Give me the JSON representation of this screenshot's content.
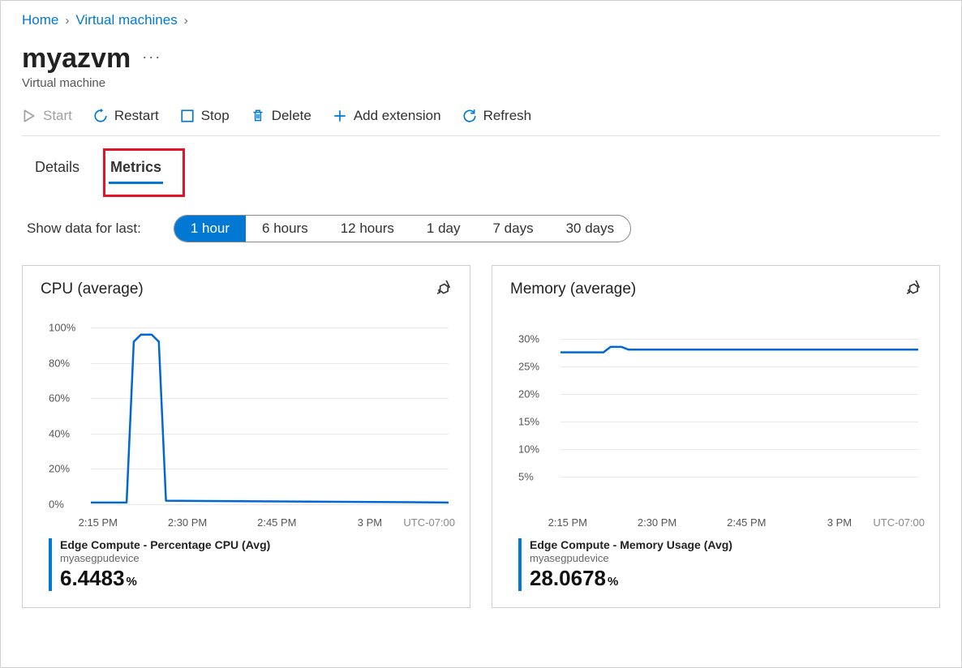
{
  "breadcrumb": {
    "home": "Home",
    "vms": "Virtual machines"
  },
  "title": "myazvm",
  "subtitle": "Virtual machine",
  "toolbar": {
    "start": "Start",
    "restart": "Restart",
    "stop": "Stop",
    "delete": "Delete",
    "add_extension": "Add extension",
    "refresh": "Refresh"
  },
  "tabs": {
    "details": "Details",
    "metrics": "Metrics",
    "active": "metrics"
  },
  "filter": {
    "label": "Show data for last:",
    "options": [
      "1 hour",
      "6 hours",
      "12 hours",
      "1 day",
      "7 days",
      "30 days"
    ],
    "selected_index": 0
  },
  "cpu_chart": {
    "title": "CPU (average)",
    "type": "line",
    "y_ticks": [
      0,
      20,
      40,
      60,
      80,
      100
    ],
    "y_tick_labels": [
      "0%",
      "20%",
      "40%",
      "60%",
      "80%",
      "100%"
    ],
    "ylim": [
      0,
      100
    ],
    "x_ticks": [
      0.02,
      0.27,
      0.52,
      0.78
    ],
    "x_tick_labels": [
      "2:15 PM",
      "2:30 PM",
      "2:45 PM",
      "3 PM"
    ],
    "utc_label": "UTC-07:00",
    "line_color": "#0068d4",
    "line_width": 2.5,
    "grid_color": "#e8e8e8",
    "points": [
      [
        0.0,
        1
      ],
      [
        0.1,
        1
      ],
      [
        0.12,
        92
      ],
      [
        0.14,
        96
      ],
      [
        0.17,
        96
      ],
      [
        0.19,
        92
      ],
      [
        0.21,
        2
      ],
      [
        1.0,
        1
      ]
    ],
    "legend": {
      "title": "Edge Compute - Percentage CPU (Avg)",
      "sub": "myasegpudevice",
      "value": "6.4483",
      "unit": "%"
    }
  },
  "memory_chart": {
    "title": "Memory (average)",
    "type": "line",
    "y_ticks": [
      5,
      10,
      15,
      20,
      25,
      30
    ],
    "y_tick_labels": [
      "5%",
      "10%",
      "15%",
      "20%",
      "25%",
      "30%"
    ],
    "ylim": [
      0,
      32
    ],
    "x_ticks": [
      0.02,
      0.27,
      0.52,
      0.78
    ],
    "x_tick_labels": [
      "2:15 PM",
      "2:30 PM",
      "2:45 PM",
      "3 PM"
    ],
    "utc_label": "UTC-07:00",
    "line_color": "#0068d4",
    "line_width": 2.5,
    "grid_color": "#e8e8e8",
    "points": [
      [
        0.0,
        27.5
      ],
      [
        0.12,
        27.5
      ],
      [
        0.14,
        28.5
      ],
      [
        0.17,
        28.5
      ],
      [
        0.19,
        28.0
      ],
      [
        1.0,
        28.0
      ]
    ],
    "legend": {
      "title": "Edge Compute - Memory Usage (Avg)",
      "sub": "myasegpudevice",
      "value": "28.0678",
      "unit": "%"
    }
  },
  "colors": {
    "link": "#0078d4",
    "accent": "#0078d4",
    "highlight_box": "#e3132c"
  }
}
